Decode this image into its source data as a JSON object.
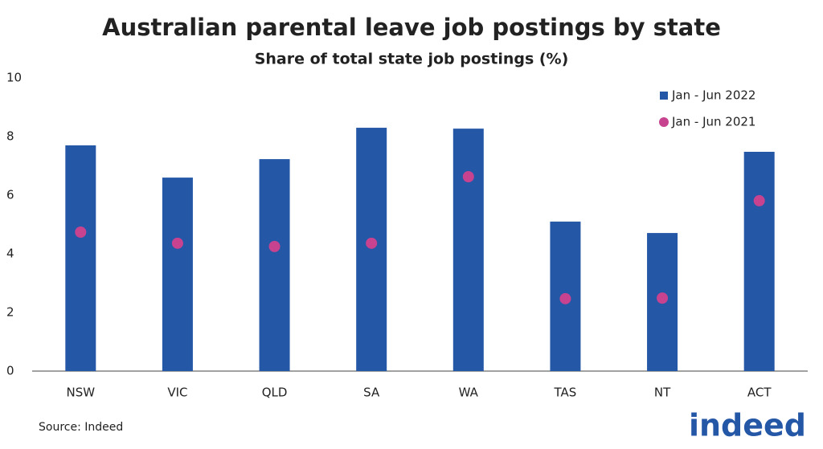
{
  "chart_data": {
    "type": "bar",
    "title": "Australian parental leave job postings by state",
    "subtitle": "Share of total state job postings (%)",
    "categories": [
      "NSW",
      "VIC",
      "QLD",
      "SA",
      "WA",
      "TAS",
      "NT",
      "ACT"
    ],
    "series": [
      {
        "name": "Jan - Jun 2022",
        "type": "bar",
        "color": "#2557a7",
        "values": [
          7.7,
          6.6,
          7.23,
          8.3,
          8.27,
          5.1,
          4.71,
          7.48
        ]
      },
      {
        "name": "Jan - Jun 2021",
        "type": "scatter",
        "color": "#c7438f",
        "values": [
          4.74,
          4.36,
          4.25,
          4.36,
          6.63,
          2.47,
          2.49,
          5.81
        ]
      }
    ],
    "ylim": [
      0,
      10
    ],
    "yticks": [
      0,
      2,
      4,
      6,
      8,
      10
    ],
    "grid": false,
    "legend": "top-right",
    "source": "Source: Indeed",
    "brand": "indeed"
  }
}
